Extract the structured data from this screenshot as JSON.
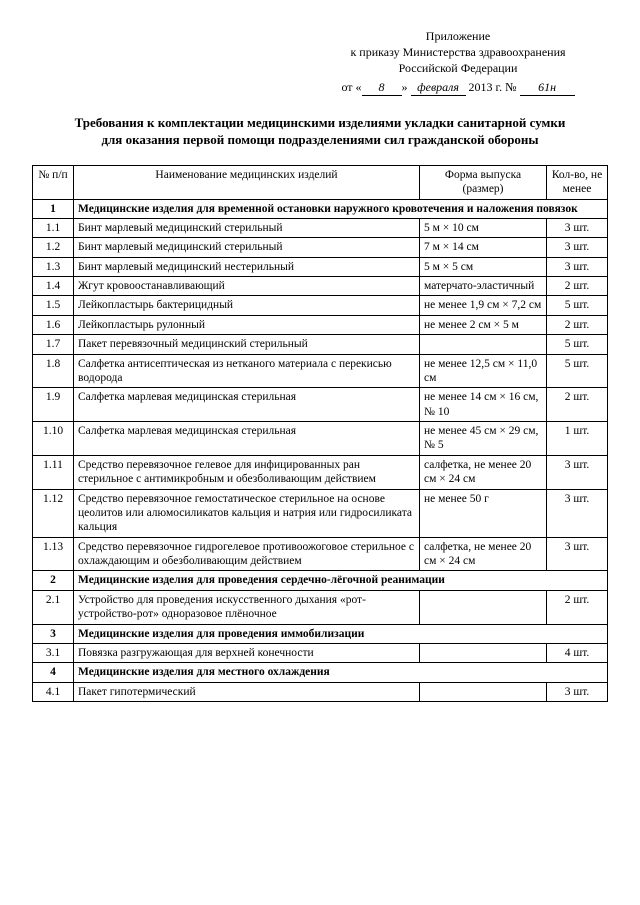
{
  "header": {
    "line1": "Приложение",
    "line2": "к приказу Министерства здравоохранения",
    "line3": "Российской Федерации",
    "date_prefix": "от «",
    "date_day": "8",
    "date_mid": "» ",
    "date_month": "февраля",
    "date_year": " 2013 г. № ",
    "date_num": "61н"
  },
  "title": "Требования к комплектации медицинскими изделиями укладки санитарной сумки для оказания первой помощи подразделениями сил гражданской обороны",
  "columns": {
    "num": "№ п/п",
    "name": "Наименование медицинских изделий",
    "form": "Форма выпуска (размер)",
    "qty": "Кол-во, не менее"
  },
  "sections": [
    {
      "num": "1",
      "title": "Медицинские изделия для временной остановки наружного кровотечения и наложения повязок",
      "rows": [
        {
          "n": "1.1",
          "name": "Бинт марлевый медицинский стерильный",
          "form": "5 м × 10 см",
          "qty": "3 шт."
        },
        {
          "n": "1.2",
          "name": "Бинт марлевый медицинский стерильный",
          "form": "7 м × 14 см",
          "qty": "3 шт."
        },
        {
          "n": "1.3",
          "name": "Бинт марлевый медицинский нестерильный",
          "form": "5 м × 5 см",
          "qty": "3 шт."
        },
        {
          "n": "1.4",
          "name": "Жгут кровоостанавливающий",
          "form": "матерчато-эластичный",
          "qty": "2 шт."
        },
        {
          "n": "1.5",
          "name": "Лейкопластырь бактерицидный",
          "form": "не менее 1,9 см × 7,2 см",
          "qty": "5 шт."
        },
        {
          "n": "1.6",
          "name": "Лейкопластырь рулонный",
          "form": "не менее 2 см × 5 м",
          "qty": "2 шт."
        },
        {
          "n": "1.7",
          "name": "Пакет перевязочный медицинский стерильный",
          "form": "",
          "qty": "5 шт."
        },
        {
          "n": "1.8",
          "name": "Салфетка антисептическая из нетканого материала с перекисью водорода",
          "form": "не менее 12,5 см × 11,0 см",
          "qty": "5 шт."
        },
        {
          "n": "1.9",
          "name": "Салфетка марлевая медицинская стерильная",
          "form": "не менее 14 см × 16 см, № 10",
          "qty": "2 шт."
        },
        {
          "n": "1.10",
          "name": "Салфетка марлевая медицинская стерильная",
          "form": "не менее 45 см × 29 см, № 5",
          "qty": "1 шт."
        },
        {
          "n": "1.11",
          "name": "Средство перевязочное гелевое для инфицированных ран стерильное с антимикробным и обезболивающим действием",
          "form": "салфетка, не менее 20 см × 24 см",
          "qty": "3 шт."
        },
        {
          "n": "1.12",
          "name": "Средство перевязочное гемостатическое стерильное на основе цеолитов или алюмосиликатов кальция и натрия или гидросиликата кальция",
          "form": "не менее 50 г",
          "qty": "3 шт."
        },
        {
          "n": "1.13",
          "name": "Средство перевязочное гидрогелевое противоожоговое стерильное с охлаждающим и обезболивающим действием",
          "form": "салфетка, не менее 20 см × 24 см",
          "qty": "3 шт."
        }
      ]
    },
    {
      "num": "2",
      "title": "Медицинские изделия для проведения сердечно-лёгочной реанимации",
      "rows": [
        {
          "n": "2.1",
          "name": "Устройство для проведения искусственного дыхания «рот-устройство-рот» одноразовое плёночное",
          "form": "",
          "qty": "2 шт."
        }
      ]
    },
    {
      "num": "3",
      "title": "Медицинские изделия для проведения иммобилизации",
      "rows": [
        {
          "n": "3.1",
          "name": "Повязка разгружающая для верхней конечности",
          "form": "",
          "qty": "4 шт."
        }
      ]
    },
    {
      "num": "4",
      "title": "Медицинские изделия для местного охлаждения",
      "rows": [
        {
          "n": "4.1",
          "name": "Пакет гипотермический",
          "form": "",
          "qty": "3 шт."
        }
      ]
    }
  ]
}
